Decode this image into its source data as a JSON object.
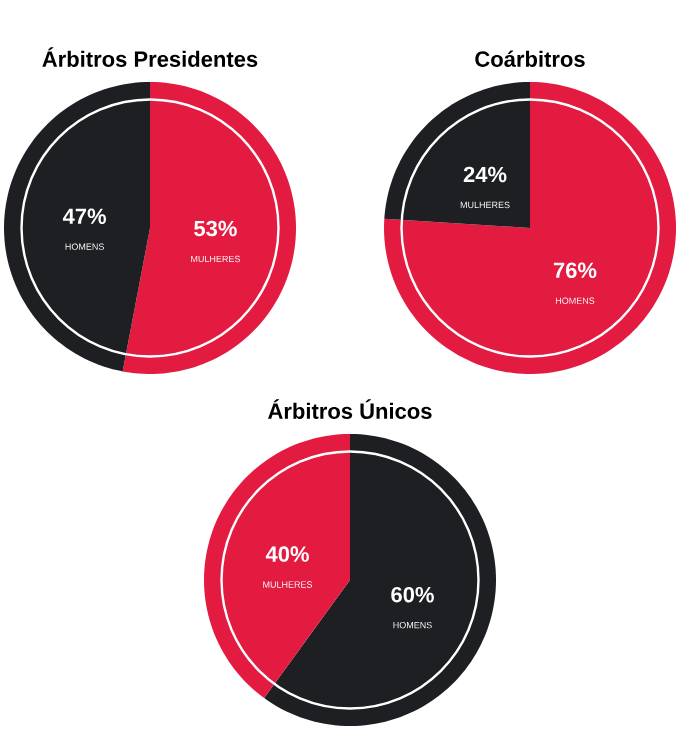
{
  "chart_data": [
    {
      "type": "pie",
      "title": "Árbitros Presidentes",
      "categories": [
        "MULHERES",
        "HOMENS"
      ],
      "values": [
        53,
        47
      ],
      "colors": [
        "#e31b40",
        "#1e1f23"
      ],
      "value_labels": [
        "53%",
        "47%"
      ]
    },
    {
      "type": "pie",
      "title": "Coárbitros",
      "categories": [
        "HOMENS",
        "MULHERES"
      ],
      "values": [
        76,
        24
      ],
      "colors": [
        "#e31b40",
        "#1e1f23"
      ],
      "value_labels": [
        "76%",
        "24%"
      ]
    },
    {
      "type": "pie",
      "title": "Árbitros Únicos",
      "categories": [
        "HOMENS",
        "MULHERES"
      ],
      "values": [
        60,
        40
      ],
      "colors": [
        "#1e1f23",
        "#e31b40"
      ],
      "value_labels": [
        "60%",
        "40%"
      ]
    }
  ]
}
